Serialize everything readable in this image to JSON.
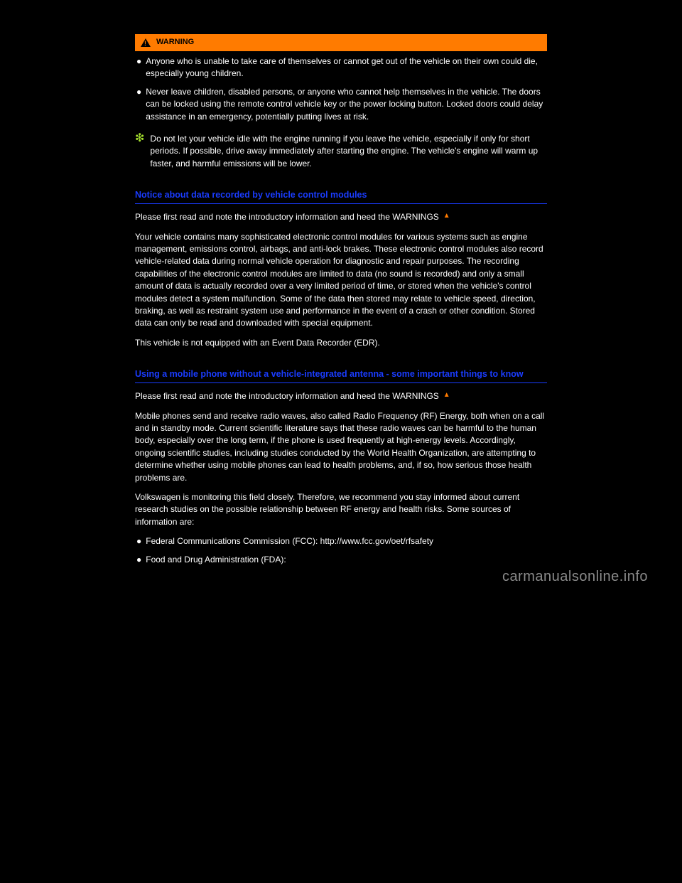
{
  "colors": {
    "page_bg": "#000000",
    "text": "#ffffff",
    "warning_bg": "#ff7b00",
    "warning_text": "#000000",
    "heading_blue": "#1a3cff",
    "flower_green": "#a6e22e",
    "watermark_gray": "#8a8a8a"
  },
  "warning": {
    "label": "WARNING",
    "bullets": [
      "Anyone who is unable to take care of themselves or cannot get out of the vehicle on their own could die, especially young children.",
      "Never leave children, disabled persons, or anyone who cannot help themselves in the vehicle. The doors can be locked using the remote control vehicle key or the power locking button. Locked doors could delay assistance in an emergency, potentially putting lives at risk."
    ]
  },
  "eco": {
    "icon": "❇",
    "text": "Do not let your vehicle idle with the engine running if you leave the vehicle, especially if only for short periods. If possible, drive away immediately after starting the engine. The vehicle's engine will warm up faster, and harmful emissions will be lower."
  },
  "section1": {
    "heading": "Notice about data recorded by vehicle control modules",
    "intro_prefix": "Please first read and note the introductory information and heed the WARNINGS ",
    "body": [
      "Your vehicle contains many sophisticated electronic control modules for various systems such as engine management, emissions control, airbags, and anti-lock brakes. These electronic control modules also record vehicle-related data during normal vehicle operation for diagnostic and repair purposes. The recording capabilities of the electronic control modules are limited to data (no sound is recorded) and only a small amount of data is actually recorded over a very limited period of time, or stored when the vehicle's control modules detect a system malfunction. Some of the data then stored may relate to vehicle speed, direction, braking, as well as restraint system use and performance in the event of a crash or other condition. Stored data can only be read and downloaded with special equipment.",
      "This vehicle is not equipped with an Event Data Recorder (EDR)."
    ]
  },
  "section2": {
    "heading": "Using a mobile phone without a vehicle-integrated antenna - some important things to know",
    "intro_prefix": "Please first read and note the introductory information and heed the WARNINGS ",
    "body": [
      "Mobile phones send and receive radio waves, also called Radio Frequency (RF) Energy, both when on a call and in standby mode. Current scientific literature says that these radio waves can be harmful to the human body, especially over the long term, if the phone is used frequently at high-energy levels. Accordingly, ongoing scientific studies, including studies conducted by the World Health Organization, are attempting to determine whether using mobile phones can lead to health problems, and, if so, how serious those health problems are.",
      "Volkswagen is monitoring this field closely. Therefore, we recommend you stay informed about current research studies on the possible relationship between RF energy and health risks. Some sources of information are:"
    ],
    "bullets": [
      "Federal Communications Commission (FCC): http://www.fcc.gov/oet/rfsafety",
      "Food and Drug Administration (FDA):"
    ]
  },
  "watermark": "carmanualsonline.info"
}
